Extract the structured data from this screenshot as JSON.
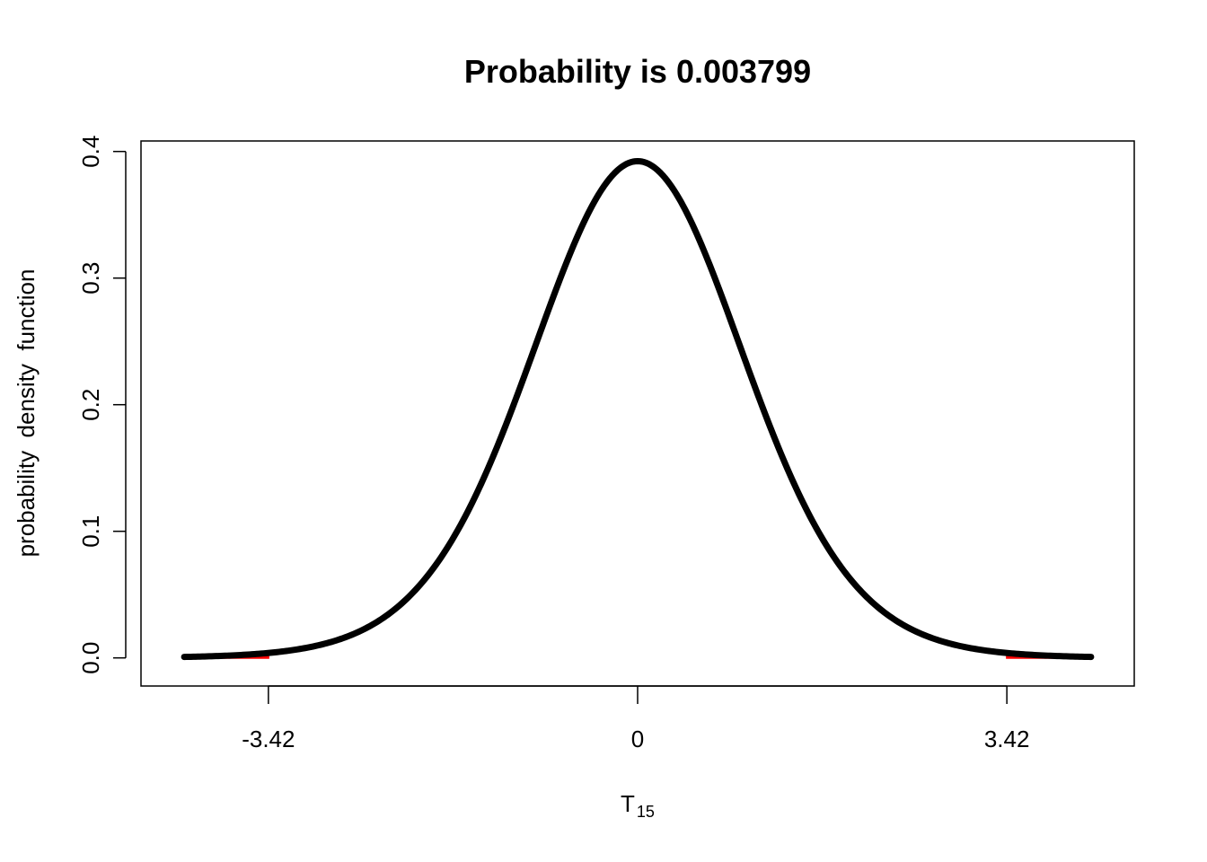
{
  "chart_data": {
    "type": "line",
    "title": "Probability is 0.003799",
    "xlabel_main": "T",
    "xlabel_sub": "15",
    "ylabel": "probability  density  function",
    "distribution": "Student t",
    "degrees_of_freedom": 15,
    "critical_value": 3.42,
    "tail_probability": 0.003799,
    "xlim": [
      -4.6,
      4.6
    ],
    "ylim": [
      0,
      0.4
    ],
    "x_domain": [
      -4.2,
      4.2
    ],
    "xticks": [
      -3.42,
      0,
      3.42
    ],
    "xtick_labels": [
      "-3.42",
      "0",
      "3.42"
    ],
    "yticks": [
      0.0,
      0.1,
      0.2,
      0.3,
      0.4
    ],
    "ytick_labels": [
      "0.0",
      "0.1",
      "0.2",
      "0.3",
      "0.4"
    ],
    "series": [
      {
        "x": [
          -4.2,
          -3.42,
          -3.0,
          -2.5,
          -2.0,
          -1.5,
          -1.0,
          -0.5,
          0,
          0.5,
          1.0,
          1.5,
          2.0,
          2.5,
          3.0,
          3.42,
          4.2
        ],
        "y": [
          0.0012,
          0.0035,
          0.0068,
          0.0198,
          0.0544,
          0.1273,
          0.2337,
          0.3429,
          0.3916,
          0.3429,
          0.2337,
          0.1273,
          0.0544,
          0.0198,
          0.0068,
          0.0035,
          0.0012
        ]
      }
    ],
    "colors": {
      "curve": "#000000",
      "tail_shade": "#ff0000",
      "frame": "#000000"
    },
    "grid": false
  }
}
